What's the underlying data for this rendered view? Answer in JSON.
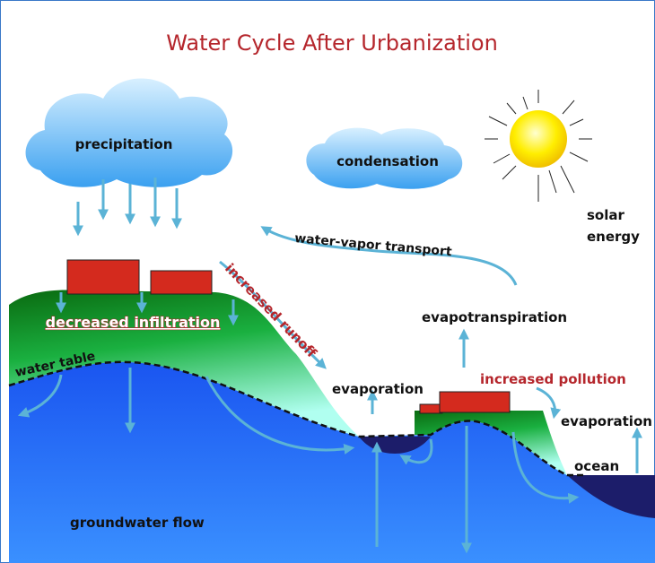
{
  "title": "Water Cycle After Urbanization",
  "labels": {
    "precipitation": "precipitation",
    "condensation": "condensation",
    "solar_energy": "solar energy",
    "water_vapor_transport": "water-vapor transport",
    "increased_runoff": "increased runoff",
    "decreased_infiltration": "decreased infiltration",
    "water_table": "water table",
    "evaporation_pond": "evaporation",
    "evapotranspiration": "evapotranspiration",
    "increased_pollution": "increased pollution",
    "evaporation_ocean": "evaporation",
    "ocean": "ocean",
    "groundwater_flow": "groundwater flow"
  }
}
